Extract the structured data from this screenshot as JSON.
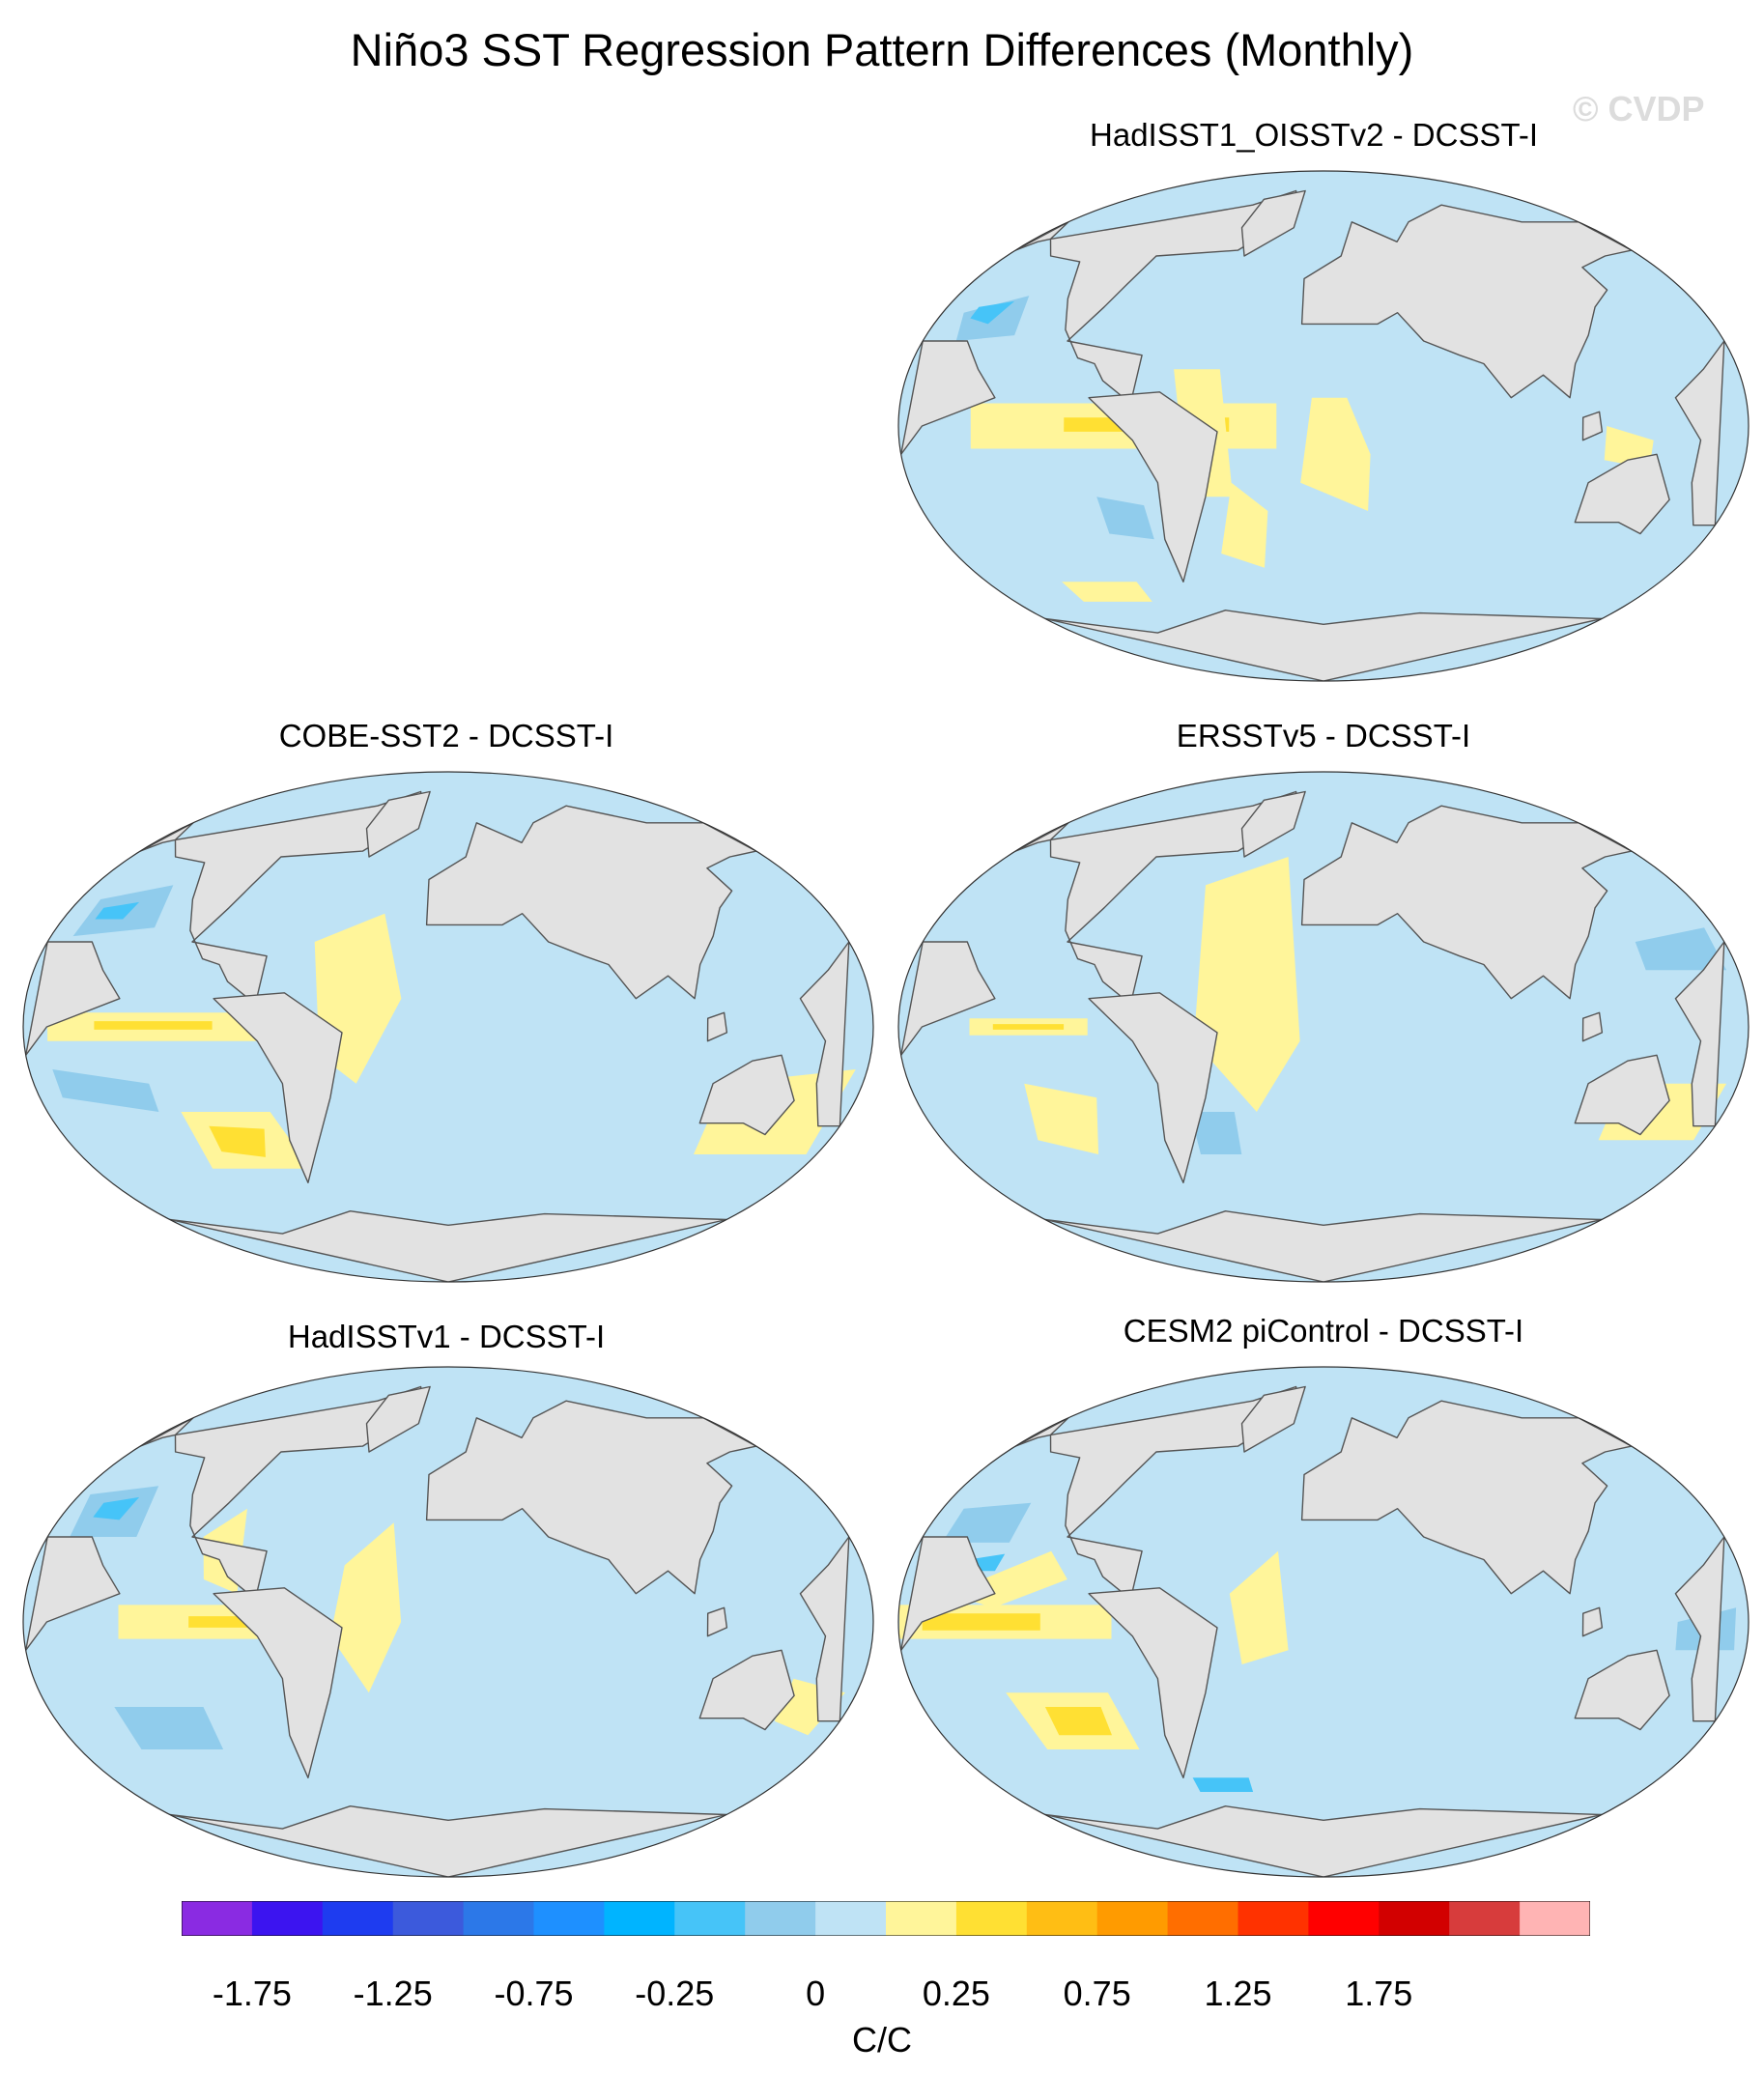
{
  "title": "Niño3 SST Regression Pattern Differences (Monthly)",
  "watermark": "© CVDP",
  "chart_data": {
    "type": "heatmap",
    "title": "Niño3 SST Regression Pattern Differences (Monthly)",
    "projection": "Winkel Tripel world map, Pacific-centered",
    "panels": [
      {
        "title": "HadISST1_OISSTv2 - DCSST-I",
        "equatorial_pacific_max": 0.5,
        "north_pacific_min": -0.6
      },
      {
        "title": "COBE-SST2 - DCSST-I",
        "equatorial_pacific_max": 0.4,
        "north_pacific_min": -0.5
      },
      {
        "title": "ERSSTv5 - DCSST-I",
        "equatorial_pacific_max": 0.3,
        "north_pacific_min": -0.3
      },
      {
        "title": "HadISSTv1 - DCSST-I",
        "equatorial_pacific_max": 0.3,
        "north_pacific_min": -0.6
      },
      {
        "title": "CESM2 piControl - DCSST-I",
        "equatorial_pacific_max": 0.6,
        "north_pacific_min": -0.6
      }
    ],
    "colorbar": {
      "units": "C/C",
      "levels": [
        -1.75,
        -1.5,
        -1.25,
        -1,
        -0.75,
        -0.5,
        -0.25,
        -0.125,
        0,
        0.125,
        0.25,
        0.5,
        0.75,
        1,
        1.25,
        1.5,
        1.75
      ],
      "tick_labels": [
        "-1.75",
        "-1.25",
        "-0.75",
        "-0.25",
        "0",
        "0.25",
        "0.75",
        "1.25",
        "1.75"
      ],
      "colors": [
        "#8a2be2",
        "#3c14f0",
        "#1e3cf0",
        "#3c5adc",
        "#2c78e8",
        "#1e90ff",
        "#00b4ff",
        "#46c4f8",
        "#90ccec",
        "#bfe3f5",
        "#fff59a",
        "#ffe033",
        "#ffbe14",
        "#ff9b00",
        "#ff6e00",
        "#ff3200",
        "#ff0000",
        "#d20000",
        "#d73c3c",
        "#ffb4b4"
      ]
    },
    "land_color": "#e2e2e2",
    "coast_color": "#555555"
  }
}
